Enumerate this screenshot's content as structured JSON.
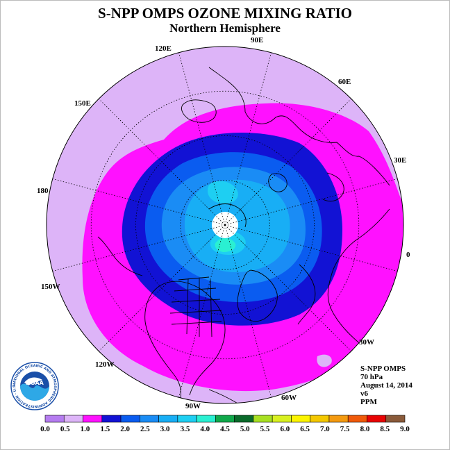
{
  "title": "S-NPP OMPS OZONE MIXING RATIO",
  "subtitle": "Northern Hemisphere",
  "longitude_labels": [
    "90E",
    "60E",
    "30E",
    "0",
    "30W",
    "60W",
    "90W",
    "120W",
    "150W",
    "180",
    "150E",
    "120E"
  ],
  "info": {
    "instrument": "S-NPP OMPS",
    "level": "70 hPa",
    "date": "August 14, 2014",
    "version": "v6",
    "units": "PPM"
  },
  "logo": {
    "text": "NOAA",
    "ring_text": "NATIONAL OCEANIC AND ATMOSPHERIC ADMINISTRATION · U.S. DEPARTMENT OF COMMERCE"
  },
  "colorbar": {
    "ticks": [
      "0.0",
      "0.5",
      "1.0",
      "1.5",
      "2.0",
      "2.5",
      "3.0",
      "3.5",
      "4.0",
      "4.5",
      "5.0",
      "5.5",
      "6.0",
      "6.5",
      "7.0",
      "7.5",
      "8.0",
      "8.5",
      "9.0"
    ],
    "colors": [
      "#b57cf0",
      "#ddb4f8",
      "#ff11ff",
      "#1212d4",
      "#0a5cf0",
      "#1a8cf5",
      "#18aef5",
      "#1ecff2",
      "#2af0d2",
      "#10a84a",
      "#0a6a2a",
      "#a8e022",
      "#d8f020",
      "#fcf400",
      "#f4c800",
      "#f49a10",
      "#f05a0a",
      "#e80404",
      "#8a5a3a"
    ]
  },
  "colors": {
    "lavender": "#ddb4f8",
    "magenta": "#ff11ff",
    "dark_blue": "#1212d4",
    "blue": "#0a5cf0",
    "med_blue": "#1a8cf5",
    "light_blue": "#18aef5",
    "cyan": "#1ecff2",
    "aqua": "#2af0d2",
    "no_data": "#ffffff"
  }
}
